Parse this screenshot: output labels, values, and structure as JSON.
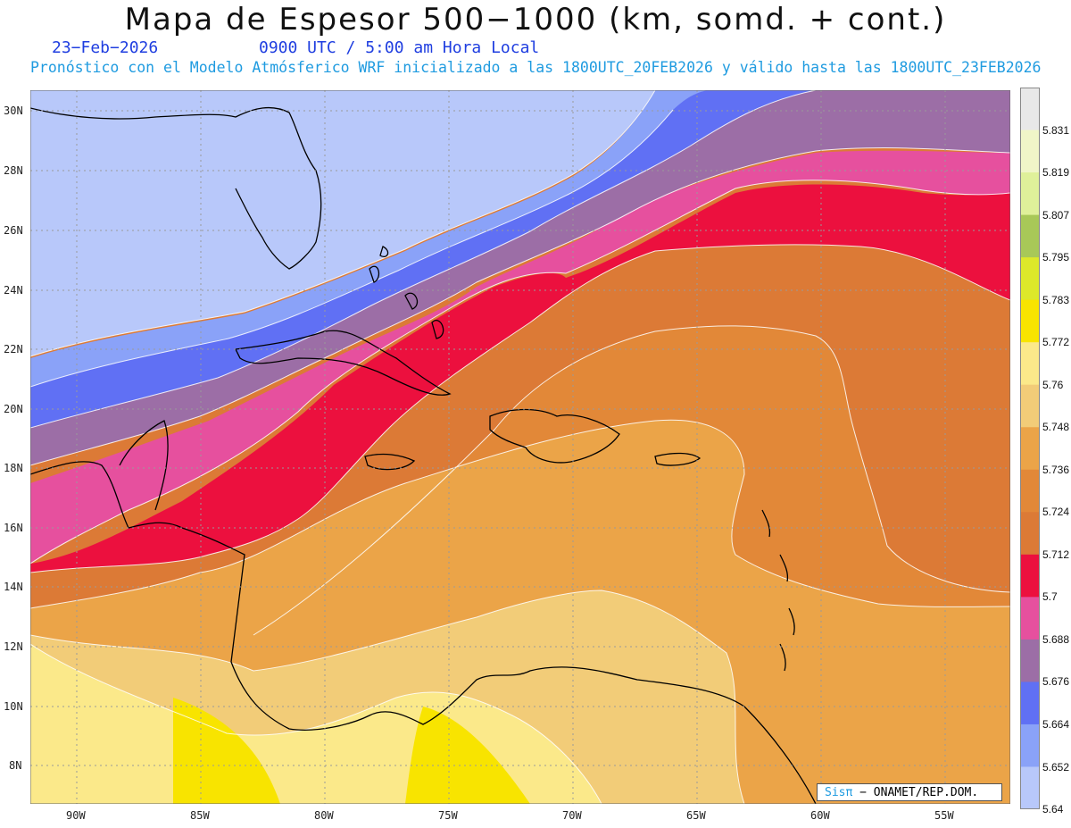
{
  "title": "Mapa de Espesor 500−1000 (km, somd. + cont.)",
  "date": "23−Feb−2026",
  "valid_time": "0900 UTC / 5:00 am Hora Local",
  "subtitle": "Pronóstico con el Modelo Atmósferico WRF inicializado a las 1800UTC_20FEB2026 y válido hasta las  1800UTC_23FEB2026",
  "map": {
    "lat_ticks": [
      "30N",
      "28N",
      "26N",
      "24N",
      "22N",
      "20N",
      "18N",
      "16N",
      "14N",
      "12N",
      "10N",
      "8N"
    ],
    "lon_ticks": [
      "90W",
      "85W",
      "80W",
      "75W",
      "70W",
      "65W",
      "60W",
      "55W"
    ]
  },
  "colorbar": {
    "labels": [
      "5.831",
      "5.819",
      "5.807",
      "5.795",
      "5.783",
      "5.772",
      "5.76",
      "5.748",
      "5.736",
      "5.724",
      "5.712",
      "5.7",
      "5.688",
      "5.676",
      "5.664",
      "5.652",
      "5.64"
    ],
    "colors": [
      "#e8e8e8",
      "#f0f5c8",
      "#dff09a",
      "#a8c858",
      "#dde82a",
      "#f8e400",
      "#fbe98a",
      "#f2cc78",
      "#eba448",
      "#e28838",
      "#dc7a36",
      "#ec103e",
      "#e6509e",
      "#9c6ea6",
      "#6070f4",
      "#8aa2f8",
      "#b8c8fa"
    ]
  },
  "credit": {
    "brand": "Sisπ",
    "text": " − ONAMET/REP.DOM."
  },
  "colors": {
    "c5_64": "#b8c8fa",
    "c5_652": "#8aa2f8",
    "c5_664": "#6070f4",
    "c5_676": "#9c6ea6",
    "c5_688": "#e6509e",
    "c5_70": "#ec103e",
    "c5_712": "#dc7a36",
    "c5_724": "#e28838",
    "c5_736": "#eba448",
    "c5_748": "#f2cc78",
    "c5_76": "#fbe98a",
    "c5_772": "#f8e400"
  }
}
